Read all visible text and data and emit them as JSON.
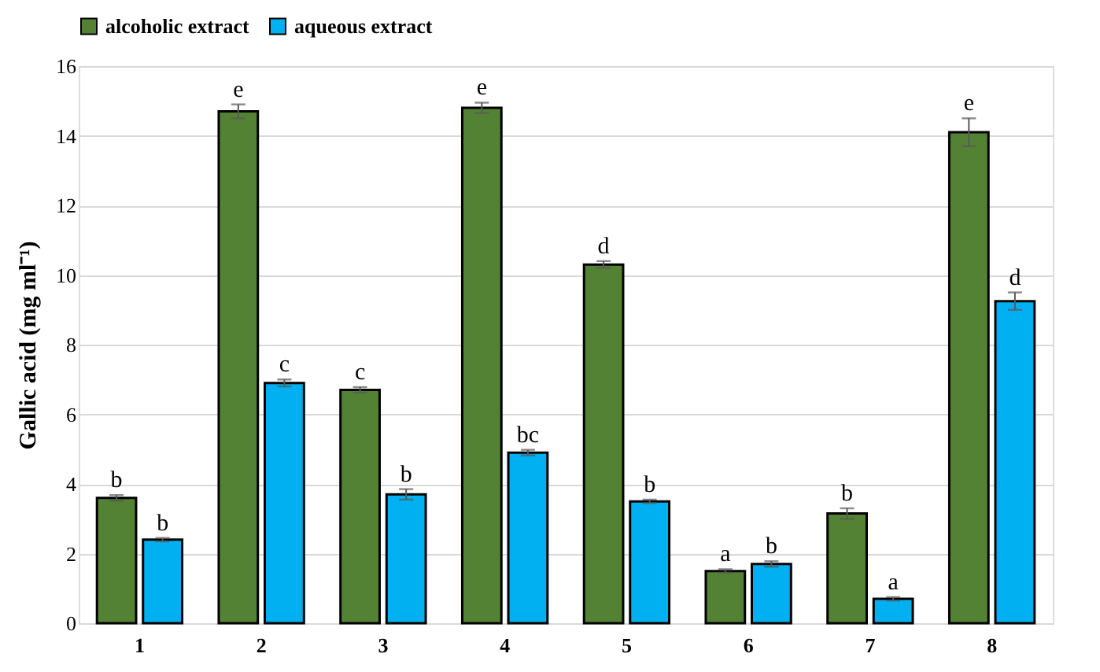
{
  "chart_data": {
    "type": "bar",
    "ylabel": "Gallic acid (mg ml⁻¹)",
    "categories": [
      "1",
      "2",
      "3",
      "4",
      "5",
      "6",
      "7",
      "8"
    ],
    "series": [
      {
        "name": "alcoholic extract",
        "color": "#548235",
        "values": [
          3.6,
          14.7,
          6.7,
          14.8,
          10.3,
          1.5,
          3.15,
          14.1
        ],
        "errors": [
          0.08,
          0.2,
          0.08,
          0.15,
          0.1,
          0.05,
          0.15,
          0.4
        ],
        "value_labels": [
          "b",
          "e",
          "c",
          "e",
          "d",
          "a",
          "b",
          "e"
        ]
      },
      {
        "name": "aqueous extract",
        "color": "#00b0f0",
        "values": [
          2.4,
          6.9,
          3.7,
          4.9,
          3.5,
          1.7,
          0.7,
          9.25
        ],
        "errors": [
          0.05,
          0.1,
          0.15,
          0.08,
          0.05,
          0.08,
          0.05,
          0.25
        ],
        "value_labels": [
          "b",
          "c",
          "b",
          "bc",
          "b",
          "b",
          "a",
          "d"
        ]
      }
    ],
    "ylim": [
      0,
      16
    ],
    "yticks": [
      0,
      2,
      4,
      6,
      8,
      10,
      12,
      14,
      16
    ],
    "grid": "y",
    "legend": "top"
  }
}
